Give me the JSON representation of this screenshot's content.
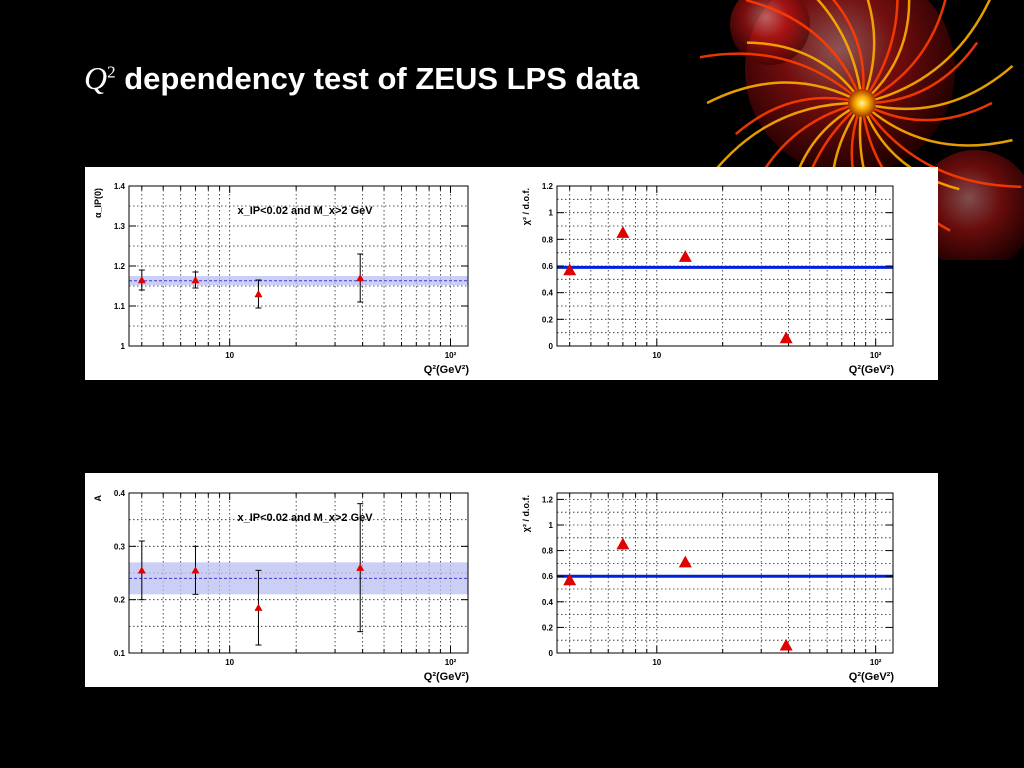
{
  "slide": {
    "title_var": "Q",
    "title_sup": "2",
    "title_rest": " dependency test of ZEUS LPS data"
  },
  "common": {
    "x_ticks": [
      10,
      100
    ],
    "x_tick_labels": [
      "10",
      "10²"
    ],
    "xlabel": "Q²(GeV²)",
    "xlim": [
      3.5,
      120
    ],
    "x_scale": "log"
  },
  "colors": {
    "marker": "#e00000",
    "fit_line": "#0020e0",
    "band": "#b9bff2",
    "band_line": "#3a3ad0"
  },
  "chart_data": [
    {
      "id": "alpha",
      "type": "scatter",
      "ylabel": "α_IP(0)",
      "annotation": "x_IP<0.02 and M_x>2 GeV",
      "ylim": [
        1.0,
        1.4
      ],
      "y_ticks": [
        1.0,
        1.1,
        1.2,
        1.3,
        1.4
      ],
      "y_tick_labels": [
        "1",
        "1.1",
        "1.2",
        "1.3",
        "1.4"
      ],
      "x": [
        4,
        7,
        13.5,
        39
      ],
      "y": [
        1.165,
        1.165,
        1.13,
        1.17
      ],
      "y_err": [
        0.025,
        0.02,
        0.035,
        0.06
      ],
      "band": {
        "low": 1.152,
        "high": 1.175,
        "center": 1.163
      },
      "grid": true
    },
    {
      "id": "chi2-top",
      "type": "scatter",
      "ylabel": "χ² / d.o.f.",
      "ylim": [
        0,
        1.2
      ],
      "y_ticks": [
        0,
        0.2,
        0.4,
        0.6,
        0.8,
        1.0,
        1.2
      ],
      "y_tick_labels": [
        "0",
        "0.2",
        "0.4",
        "0.6",
        "0.8",
        "1",
        "1.2"
      ],
      "x": [
        4,
        7,
        13.5,
        39
      ],
      "y": [
        0.57,
        0.85,
        0.67,
        0.06
      ],
      "hline": 0.59,
      "grid": true
    },
    {
      "id": "A",
      "type": "scatter",
      "ylabel": "A",
      "annotation": "x_IP<0.02 and M_x>2 GeV",
      "ylim": [
        0.1,
        0.4
      ],
      "y_ticks": [
        0.1,
        0.2,
        0.3,
        0.4
      ],
      "y_tick_labels": [
        "0.1",
        "0.2",
        "0.3",
        "0.4"
      ],
      "x": [
        4,
        7,
        13.5,
        39
      ],
      "y": [
        0.255,
        0.255,
        0.185,
        0.26
      ],
      "y_err": [
        0.055,
        0.045,
        0.07,
        0.12
      ],
      "band": {
        "low": 0.21,
        "high": 0.27,
        "center": 0.24
      },
      "grid": true
    },
    {
      "id": "chi2-bottom",
      "type": "scatter",
      "ylabel": "χ² / d.o.f.",
      "ylim": [
        0,
        1.25
      ],
      "y_ticks": [
        0,
        0.2,
        0.4,
        0.6,
        0.8,
        1.0,
        1.2
      ],
      "y_tick_labels": [
        "0",
        "0.2",
        "0.4",
        "0.6",
        "0.8",
        "1",
        "1.2"
      ],
      "x": [
        4,
        7,
        13.5,
        39
      ],
      "y": [
        0.57,
        0.85,
        0.71,
        0.06
      ],
      "hline": 0.6,
      "grid": true
    }
  ]
}
